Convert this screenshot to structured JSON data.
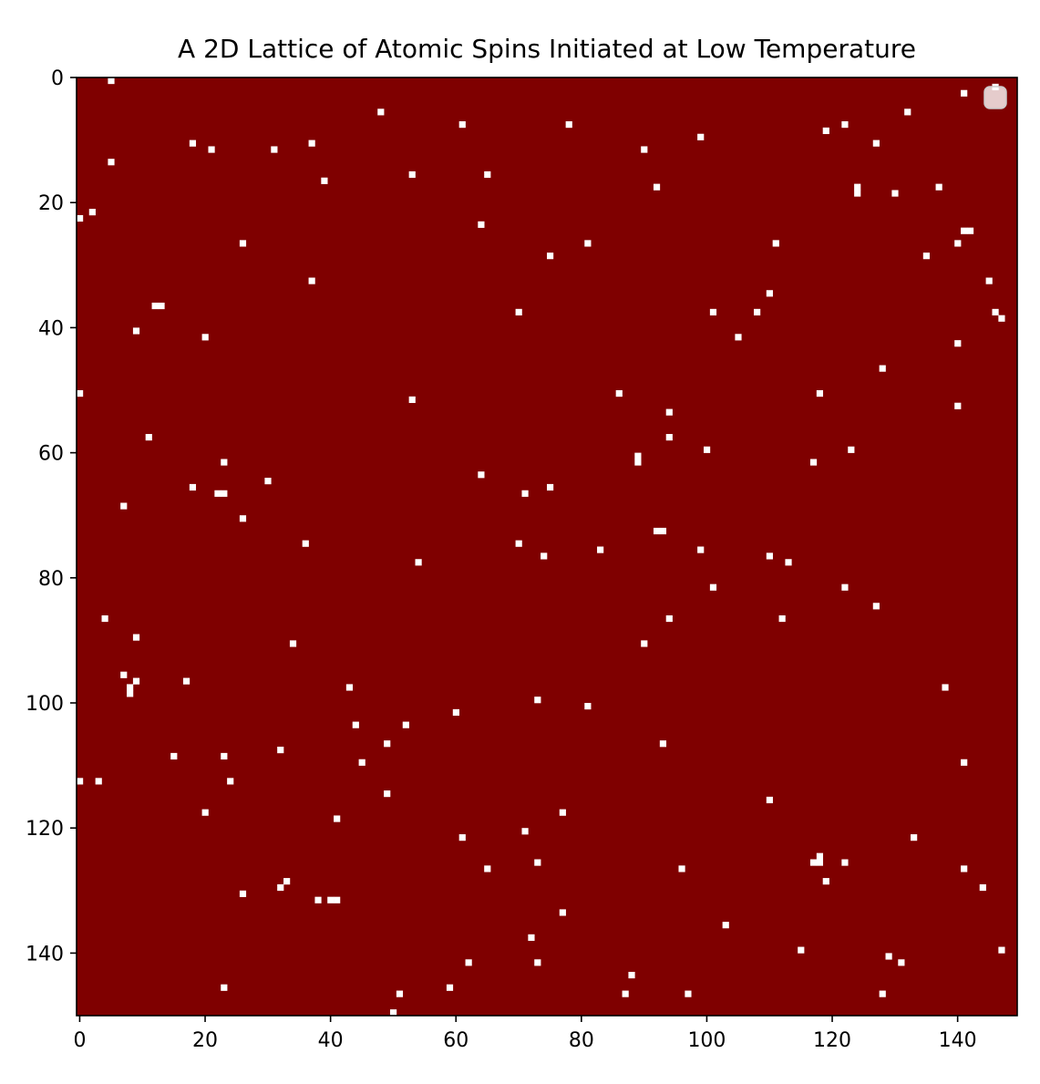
{
  "chart_data": {
    "type": "heatmap",
    "title": "A 2D Lattice of Atomic Spins Initiated at Low Temperature",
    "xlabel": "",
    "ylabel": "",
    "grid_size": 150,
    "xlim": [
      0,
      150
    ],
    "ylim": [
      150,
      0
    ],
    "x_ticks": [
      0,
      20,
      40,
      60,
      80,
      100,
      120,
      140
    ],
    "y_ticks": [
      0,
      20,
      40,
      60,
      80,
      100,
      120,
      140
    ],
    "x_tick_labels": [
      "0",
      "20",
      "40",
      "60",
      "80",
      "100",
      "120",
      "140"
    ],
    "y_tick_labels": [
      "0",
      "20",
      "40",
      "60",
      "80",
      "100",
      "120",
      "140"
    ],
    "background_value": 1,
    "background_color": "#7f0000",
    "flipped_value": -1,
    "flipped_color": "#ffffff",
    "legend": {
      "placement": "upper-right",
      "entries": []
    },
    "flipped_spins": [
      [
        5,
        0
      ],
      [
        146,
        1
      ],
      [
        141,
        2
      ],
      [
        48,
        5
      ],
      [
        132,
        5
      ],
      [
        61,
        7
      ],
      [
        78,
        7
      ],
      [
        122,
        7
      ],
      [
        119,
        8
      ],
      [
        99,
        9
      ],
      [
        18,
        10
      ],
      [
        37,
        10
      ],
      [
        127,
        10
      ],
      [
        21,
        11
      ],
      [
        31,
        11
      ],
      [
        90,
        11
      ],
      [
        5,
        13
      ],
      [
        53,
        15
      ],
      [
        65,
        15
      ],
      [
        39,
        16
      ],
      [
        92,
        17
      ],
      [
        124,
        17
      ],
      [
        137,
        17
      ],
      [
        124,
        18
      ],
      [
        130,
        18
      ],
      [
        2,
        21
      ],
      [
        0,
        22
      ],
      [
        64,
        23
      ],
      [
        141,
        24
      ],
      [
        142,
        24
      ],
      [
        26,
        26
      ],
      [
        81,
        26
      ],
      [
        111,
        26
      ],
      [
        140,
        26
      ],
      [
        75,
        28
      ],
      [
        135,
        28
      ],
      [
        37,
        32
      ],
      [
        145,
        32
      ],
      [
        110,
        34
      ],
      [
        12,
        36
      ],
      [
        13,
        36
      ],
      [
        70,
        37
      ],
      [
        101,
        37
      ],
      [
        108,
        37
      ],
      [
        146,
        37
      ],
      [
        147,
        38
      ],
      [
        9,
        40
      ],
      [
        20,
        41
      ],
      [
        105,
        41
      ],
      [
        140,
        42
      ],
      [
        128,
        46
      ],
      [
        0,
        50
      ],
      [
        86,
        50
      ],
      [
        118,
        50
      ],
      [
        53,
        51
      ],
      [
        140,
        52
      ],
      [
        94,
        53
      ],
      [
        11,
        57
      ],
      [
        94,
        57
      ],
      [
        100,
        59
      ],
      [
        123,
        59
      ],
      [
        89,
        60
      ],
      [
        23,
        61
      ],
      [
        89,
        61
      ],
      [
        117,
        61
      ],
      [
        64,
        63
      ],
      [
        30,
        64
      ],
      [
        18,
        65
      ],
      [
        75,
        65
      ],
      [
        22,
        66
      ],
      [
        23,
        66
      ],
      [
        71,
        66
      ],
      [
        7,
        68
      ],
      [
        26,
        70
      ],
      [
        92,
        72
      ],
      [
        93,
        72
      ],
      [
        36,
        74
      ],
      [
        70,
        74
      ],
      [
        99,
        75
      ],
      [
        83,
        75
      ],
      [
        74,
        76
      ],
      [
        110,
        76
      ],
      [
        54,
        77
      ],
      [
        113,
        77
      ],
      [
        101,
        81
      ],
      [
        122,
        81
      ],
      [
        127,
        84
      ],
      [
        4,
        86
      ],
      [
        94,
        86
      ],
      [
        112,
        86
      ],
      [
        9,
        89
      ],
      [
        34,
        90
      ],
      [
        90,
        90
      ],
      [
        7,
        95
      ],
      [
        9,
        96
      ],
      [
        17,
        96
      ],
      [
        8,
        97
      ],
      [
        43,
        97
      ],
      [
        138,
        97
      ],
      [
        8,
        98
      ],
      [
        73,
        99
      ],
      [
        81,
        100
      ],
      [
        60,
        101
      ],
      [
        44,
        103
      ],
      [
        52,
        103
      ],
      [
        49,
        106
      ],
      [
        93,
        106
      ],
      [
        32,
        107
      ],
      [
        15,
        108
      ],
      [
        23,
        108
      ],
      [
        45,
        109
      ],
      [
        141,
        109
      ],
      [
        0,
        112
      ],
      [
        3,
        112
      ],
      [
        24,
        112
      ],
      [
        49,
        114
      ],
      [
        110,
        115
      ],
      [
        20,
        117
      ],
      [
        77,
        117
      ],
      [
        41,
        118
      ],
      [
        71,
        120
      ],
      [
        61,
        121
      ],
      [
        133,
        121
      ],
      [
        118,
        124
      ],
      [
        73,
        125
      ],
      [
        117,
        125
      ],
      [
        118,
        125
      ],
      [
        122,
        125
      ],
      [
        65,
        126
      ],
      [
        96,
        126
      ],
      [
        141,
        126
      ],
      [
        33,
        128
      ],
      [
        119,
        128
      ],
      [
        32,
        129
      ],
      [
        144,
        129
      ],
      [
        26,
        130
      ],
      [
        38,
        131
      ],
      [
        40,
        131
      ],
      [
        41,
        131
      ],
      [
        77,
        133
      ],
      [
        103,
        135
      ],
      [
        72,
        137
      ],
      [
        115,
        139
      ],
      [
        147,
        139
      ],
      [
        129,
        140
      ],
      [
        62,
        141
      ],
      [
        73,
        141
      ],
      [
        131,
        141
      ],
      [
        88,
        143
      ],
      [
        23,
        145
      ],
      [
        59,
        145
      ],
      [
        51,
        146
      ],
      [
        87,
        146
      ],
      [
        97,
        146
      ],
      [
        128,
        146
      ],
      [
        50,
        149
      ]
    ]
  }
}
